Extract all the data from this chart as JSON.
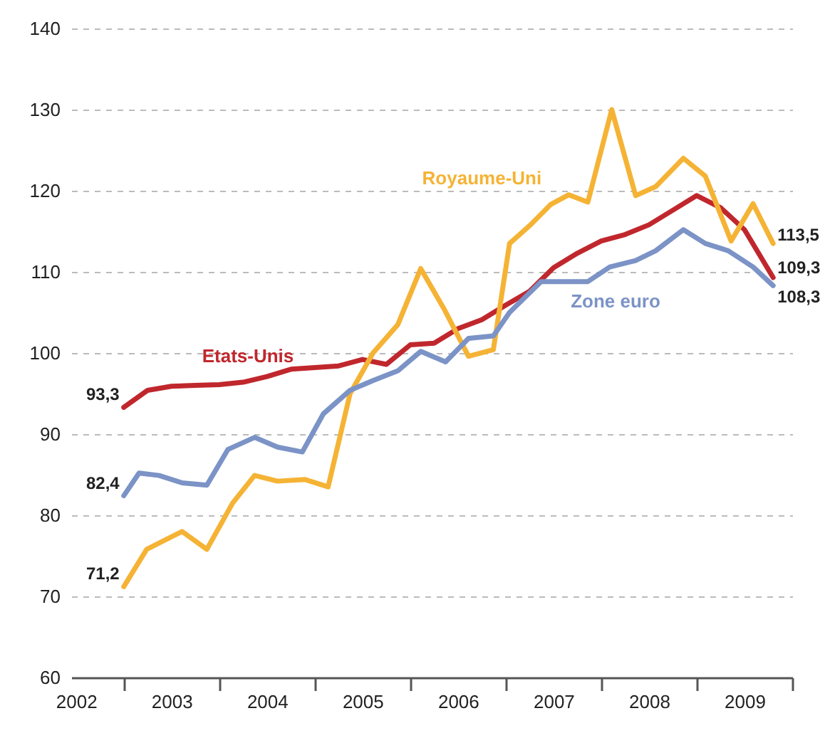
{
  "chart_data": {
    "type": "line",
    "series": [
      {
        "name": "Etats-Unis",
        "color": "#c0272d",
        "x": [
          2003,
          2003.25,
          2003.5,
          2003.75,
          2004,
          2004.25,
          2004.5,
          2004.75,
          2005,
          2005.25,
          2005.5,
          2005.75,
          2006,
          2006.25,
          2006.5,
          2006.75,
          2007,
          2007.25,
          2007.5,
          2007.75,
          2008,
          2008.25,
          2008.5,
          2008.75,
          2009,
          2009.25,
          2009.5,
          2009.8
        ],
        "values": [
          93.3,
          95.4,
          95.9,
          96.0,
          96.1,
          96.4,
          97.1,
          98.0,
          98.2,
          98.4,
          99.2,
          98.6,
          101.0,
          101.2,
          103.0,
          104.1,
          105.9,
          107.6,
          110.5,
          112.3,
          113.8,
          114.6,
          115.8,
          117.6,
          119.4,
          117.9,
          115.2,
          109.3
        ],
        "value_labels": [
          "93,3",
          null,
          null,
          null,
          null,
          null,
          null,
          null,
          null,
          null,
          null,
          null,
          null,
          null,
          null,
          null,
          null,
          null,
          null,
          null,
          null,
          null,
          null,
          null,
          null,
          null,
          null,
          "109,3"
        ]
      },
      {
        "name": "Royaume-Uni",
        "color": "#f5b335",
        "x": [
          2003,
          2003.24,
          2003.61,
          2003.87,
          2004.14,
          2004.37,
          2004.61,
          2004.9,
          2005.14,
          2005.37,
          2005.61,
          2005.87,
          2006.11,
          2006.36,
          2006.61,
          2006.87,
          2007.04,
          2007.26,
          2007.47,
          2007.66,
          2007.86,
          2008.11,
          2008.36,
          2008.57,
          2008.86,
          2009.09,
          2009.36,
          2009.59,
          2009.8
        ],
        "values": [
          71.2,
          75.8,
          78.0,
          75.8,
          81.5,
          84.9,
          84.2,
          84.4,
          83.5,
          95,
          100,
          103.5,
          110.4,
          105.3,
          99.6,
          100.4,
          113.5,
          115.8,
          118.3,
          119.5,
          118.6,
          130,
          119.4,
          120.5,
          124,
          121.8,
          113.8,
          118.4,
          113.5
        ],
        "value_labels": [
          "71,2",
          null,
          null,
          null,
          null,
          null,
          null,
          null,
          null,
          null,
          null,
          null,
          null,
          null,
          null,
          null,
          null,
          null,
          null,
          null,
          null,
          null,
          null,
          null,
          null,
          null,
          null,
          null,
          "113,5"
        ]
      },
      {
        "name": "Zone euro",
        "color": "#7b93c6",
        "x": [
          2003,
          2003.16,
          2003.37,
          2003.61,
          2003.87,
          2004.09,
          2004.37,
          2004.61,
          2004.87,
          2005.09,
          2005.37,
          2005.61,
          2005.87,
          2006.11,
          2006.37,
          2006.61,
          2006.87,
          2007.04,
          2007.37,
          2007.61,
          2007.86,
          2008.09,
          2008.36,
          2008.57,
          2008.86,
          2009.09,
          2009.33,
          2009.59,
          2009.8
        ],
        "values": [
          82.4,
          85.2,
          84.9,
          84.0,
          83.7,
          88.1,
          89.6,
          88.4,
          87.8,
          92.5,
          95.4,
          96.6,
          97.8,
          100.2,
          98.9,
          101.8,
          102.1,
          105.0,
          108.8,
          108.8,
          108.8,
          110.6,
          111.4,
          112.6,
          115.2,
          113.5,
          112.6,
          110.6,
          108.3
        ],
        "value_labels": [
          "82,4",
          null,
          null,
          null,
          null,
          null,
          null,
          null,
          null,
          null,
          null,
          null,
          null,
          null,
          null,
          null,
          null,
          null,
          null,
          null,
          null,
          null,
          null,
          null,
          null,
          null,
          null,
          null,
          "108,3"
        ]
      }
    ],
    "xlim": [
      2002.45,
      2010
    ],
    "xticks": [
      {
        "value": 2002.5,
        "label": "2002"
      },
      {
        "value": 2003,
        "label": null
      },
      {
        "value": 2003.5,
        "label": "2003"
      },
      {
        "value": 2004,
        "label": null
      },
      {
        "value": 2004.5,
        "label": "2004"
      },
      {
        "value": 2005,
        "label": null
      },
      {
        "value": 2005.5,
        "label": "2005"
      },
      {
        "value": 2006,
        "label": null
      },
      {
        "value": 2006.5,
        "label": "2006"
      },
      {
        "value": 2007,
        "label": null
      },
      {
        "value": 2007.5,
        "label": "2007"
      },
      {
        "value": 2008,
        "label": null
      },
      {
        "value": 2008.5,
        "label": "2008"
      },
      {
        "value": 2009,
        "label": null
      },
      {
        "value": 2009.5,
        "label": "2009"
      },
      {
        "value": 2010,
        "label": null
      }
    ],
    "ylim": [
      60,
      140
    ],
    "yticks": [
      60,
      70,
      80,
      90,
      100,
      110,
      120,
      130,
      140
    ],
    "grid": "y"
  }
}
